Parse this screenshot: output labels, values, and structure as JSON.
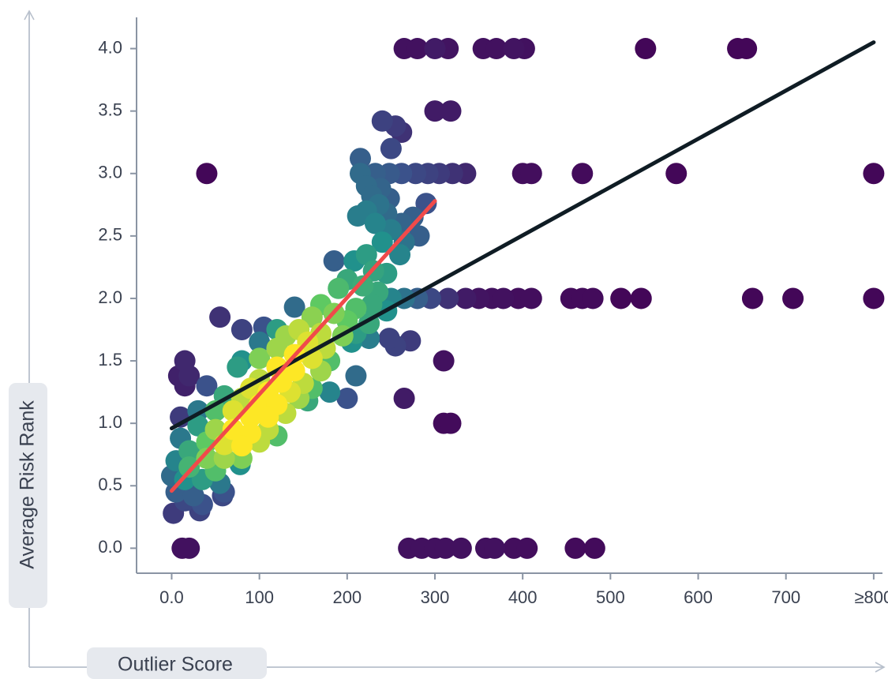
{
  "chart_data": {
    "type": "scatter",
    "title": "",
    "xlabel": "Outlier Score",
    "ylabel": "Average Risk Rank",
    "xlim": [
      -40,
      810
    ],
    "ylim": [
      -0.2,
      4.25
    ],
    "x_ticks": [
      {
        "value": 0,
        "label": "0.0"
      },
      {
        "value": 100,
        "label": "100"
      },
      {
        "value": 200,
        "label": "200"
      },
      {
        "value": 300,
        "label": "300"
      },
      {
        "value": 400,
        "label": "400"
      },
      {
        "value": 500,
        "label": "500"
      },
      {
        "value": 600,
        "label": "600"
      },
      {
        "value": 700,
        "label": "700"
      },
      {
        "value": 800,
        "label": "≥800"
      }
    ],
    "y_ticks": [
      {
        "value": 0,
        "label": "0.0"
      },
      {
        "value": 0.5,
        "label": "0.5"
      },
      {
        "value": 1,
        "label": "1.0"
      },
      {
        "value": 1.5,
        "label": "1.5"
      },
      {
        "value": 2,
        "label": "2.0"
      },
      {
        "value": 2.5,
        "label": "2.5"
      },
      {
        "value": 3,
        "label": "3.0"
      },
      {
        "value": 3.5,
        "label": "3.5"
      },
      {
        "value": 4,
        "label": "4.0"
      }
    ],
    "grid": false,
    "legend": "none",
    "color_map": [
      "#440154",
      "#3b528b",
      "#21918c",
      "#5ec962",
      "#fde725"
    ],
    "points": [
      {
        "x": 265,
        "y": 4.0,
        "d": 0.05
      },
      {
        "x": 280,
        "y": 4.0,
        "d": 0.05
      },
      {
        "x": 300,
        "y": 4.0,
        "d": 0.08
      },
      {
        "x": 315,
        "y": 4.0,
        "d": 0.06
      },
      {
        "x": 355,
        "y": 4.0,
        "d": 0.05
      },
      {
        "x": 370,
        "y": 4.0,
        "d": 0.05
      },
      {
        "x": 390,
        "y": 4.0,
        "d": 0.06
      },
      {
        "x": 402,
        "y": 4.0,
        "d": 0.05
      },
      {
        "x": 540,
        "y": 4.0,
        "d": 0.02
      },
      {
        "x": 645,
        "y": 4.0,
        "d": 0.02
      },
      {
        "x": 655,
        "y": 4.0,
        "d": 0.02
      },
      {
        "x": 300,
        "y": 3.5,
        "d": 0.08
      },
      {
        "x": 318,
        "y": 3.5,
        "d": 0.08
      },
      {
        "x": 240,
        "y": 3.42,
        "d": 0.2
      },
      {
        "x": 255,
        "y": 3.38,
        "d": 0.18
      },
      {
        "x": 262,
        "y": 3.33,
        "d": 0.15
      },
      {
        "x": 250,
        "y": 3.2,
        "d": 0.22
      },
      {
        "x": 215,
        "y": 3.12,
        "d": 0.3
      },
      {
        "x": 40,
        "y": 3.0,
        "d": 0.02
      },
      {
        "x": 215,
        "y": 3.0,
        "d": 0.35
      },
      {
        "x": 232,
        "y": 3.0,
        "d": 0.3
      },
      {
        "x": 248,
        "y": 3.0,
        "d": 0.28
      },
      {
        "x": 262,
        "y": 3.0,
        "d": 0.25
      },
      {
        "x": 278,
        "y": 3.0,
        "d": 0.22
      },
      {
        "x": 292,
        "y": 3.0,
        "d": 0.2
      },
      {
        "x": 305,
        "y": 3.0,
        "d": 0.18
      },
      {
        "x": 320,
        "y": 3.0,
        "d": 0.15
      },
      {
        "x": 335,
        "y": 3.0,
        "d": 0.12
      },
      {
        "x": 400,
        "y": 3.0,
        "d": 0.04
      },
      {
        "x": 410,
        "y": 3.0,
        "d": 0.04
      },
      {
        "x": 468,
        "y": 3.0,
        "d": 0.03
      },
      {
        "x": 575,
        "y": 3.0,
        "d": 0.02
      },
      {
        "x": 800,
        "y": 3.0,
        "d": 0.02
      },
      {
        "x": 222,
        "y": 2.9,
        "d": 0.35
      },
      {
        "x": 238,
        "y": 2.88,
        "d": 0.32
      },
      {
        "x": 228,
        "y": 2.82,
        "d": 0.35
      },
      {
        "x": 248,
        "y": 2.8,
        "d": 0.3
      },
      {
        "x": 236,
        "y": 2.75,
        "d": 0.38
      },
      {
        "x": 290,
        "y": 2.76,
        "d": 0.25
      },
      {
        "x": 222,
        "y": 2.7,
        "d": 0.42
      },
      {
        "x": 245,
        "y": 2.68,
        "d": 0.35
      },
      {
        "x": 212,
        "y": 2.66,
        "d": 0.42
      },
      {
        "x": 262,
        "y": 2.6,
        "d": 0.32
      },
      {
        "x": 275,
        "y": 2.65,
        "d": 0.3
      },
      {
        "x": 232,
        "y": 2.6,
        "d": 0.45
      },
      {
        "x": 250,
        "y": 2.55,
        "d": 0.42
      },
      {
        "x": 282,
        "y": 2.5,
        "d": 0.3
      },
      {
        "x": 265,
        "y": 2.45,
        "d": 0.38
      },
      {
        "x": 240,
        "y": 2.45,
        "d": 0.5
      },
      {
        "x": 260,
        "y": 2.35,
        "d": 0.45
      },
      {
        "x": 222,
        "y": 2.35,
        "d": 0.55
      },
      {
        "x": 185,
        "y": 2.3,
        "d": 0.3
      },
      {
        "x": 208,
        "y": 2.3,
        "d": 0.5
      },
      {
        "x": 245,
        "y": 2.2,
        "d": 0.55
      },
      {
        "x": 230,
        "y": 2.22,
        "d": 0.58
      },
      {
        "x": 200,
        "y": 2.15,
        "d": 0.6
      },
      {
        "x": 218,
        "y": 2.1,
        "d": 0.62
      },
      {
        "x": 235,
        "y": 2.05,
        "d": 0.6
      },
      {
        "x": 190,
        "y": 2.08,
        "d": 0.68
      },
      {
        "x": 250,
        "y": 2.0,
        "d": 0.45
      },
      {
        "x": 265,
        "y": 2.0,
        "d": 0.38
      },
      {
        "x": 280,
        "y": 2.0,
        "d": 0.3
      },
      {
        "x": 295,
        "y": 2.0,
        "d": 0.22
      },
      {
        "x": 315,
        "y": 2.0,
        "d": 0.15
      },
      {
        "x": 335,
        "y": 2.0,
        "d": 0.08
      },
      {
        "x": 350,
        "y": 2.0,
        "d": 0.06
      },
      {
        "x": 365,
        "y": 2.0,
        "d": 0.05
      },
      {
        "x": 378,
        "y": 2.0,
        "d": 0.05
      },
      {
        "x": 395,
        "y": 2.0,
        "d": 0.04
      },
      {
        "x": 410,
        "y": 2.0,
        "d": 0.04
      },
      {
        "x": 455,
        "y": 2.0,
        "d": 0.03
      },
      {
        "x": 468,
        "y": 2.0,
        "d": 0.03
      },
      {
        "x": 480,
        "y": 2.0,
        "d": 0.03
      },
      {
        "x": 512,
        "y": 2.0,
        "d": 0.02
      },
      {
        "x": 535,
        "y": 2.0,
        "d": 0.02
      },
      {
        "x": 662,
        "y": 2.0,
        "d": 0.02
      },
      {
        "x": 708,
        "y": 2.0,
        "d": 0.02
      },
      {
        "x": 800,
        "y": 2.0,
        "d": 0.02
      },
      {
        "x": 228,
        "y": 1.95,
        "d": 0.6
      },
      {
        "x": 170,
        "y": 1.95,
        "d": 0.75
      },
      {
        "x": 210,
        "y": 1.92,
        "d": 0.7
      },
      {
        "x": 140,
        "y": 1.93,
        "d": 0.35
      },
      {
        "x": 245,
        "y": 1.9,
        "d": 0.5
      },
      {
        "x": 185,
        "y": 1.88,
        "d": 0.8
      },
      {
        "x": 160,
        "y": 1.85,
        "d": 0.82
      },
      {
        "x": 200,
        "y": 1.82,
        "d": 0.75
      },
      {
        "x": 55,
        "y": 1.85,
        "d": 0.15
      },
      {
        "x": 225,
        "y": 1.8,
        "d": 0.6
      },
      {
        "x": 80,
        "y": 1.75,
        "d": 0.2
      },
      {
        "x": 105,
        "y": 1.77,
        "d": 0.25
      },
      {
        "x": 120,
        "y": 1.75,
        "d": 0.55
      },
      {
        "x": 145,
        "y": 1.75,
        "d": 0.9
      },
      {
        "x": 170,
        "y": 1.72,
        "d": 0.9
      },
      {
        "x": 210,
        "y": 1.72,
        "d": 0.55
      },
      {
        "x": 130,
        "y": 1.7,
        "d": 0.85
      },
      {
        "x": 195,
        "y": 1.7,
        "d": 0.8
      },
      {
        "x": 100,
        "y": 1.65,
        "d": 0.4
      },
      {
        "x": 155,
        "y": 1.65,
        "d": 0.95
      },
      {
        "x": 205,
        "y": 1.65,
        "d": 0.5
      },
      {
        "x": 225,
        "y": 1.68,
        "d": 0.42
      },
      {
        "x": 255,
        "y": 1.62,
        "d": 0.2
      },
      {
        "x": 272,
        "y": 1.66,
        "d": 0.18
      },
      {
        "x": 120,
        "y": 1.6,
        "d": 0.85
      },
      {
        "x": 175,
        "y": 1.6,
        "d": 0.9
      },
      {
        "x": 248,
        "y": 1.68,
        "d": 0.2
      },
      {
        "x": 140,
        "y": 1.55,
        "d": 1.0
      },
      {
        "x": 80,
        "y": 1.5,
        "d": 0.5
      },
      {
        "x": 100,
        "y": 1.52,
        "d": 0.8
      },
      {
        "x": 160,
        "y": 1.52,
        "d": 0.95
      },
      {
        "x": 180,
        "y": 1.5,
        "d": 0.7
      },
      {
        "x": 310,
        "y": 1.5,
        "d": 0.05
      },
      {
        "x": 15,
        "y": 1.5,
        "d": 0.12
      },
      {
        "x": 120,
        "y": 1.45,
        "d": 1.0
      },
      {
        "x": 75,
        "y": 1.45,
        "d": 0.55
      },
      {
        "x": 140,
        "y": 1.42,
        "d": 1.0
      },
      {
        "x": 170,
        "y": 1.42,
        "d": 0.85
      },
      {
        "x": 8,
        "y": 1.38,
        "d": 0.1
      },
      {
        "x": 20,
        "y": 1.38,
        "d": 0.12
      },
      {
        "x": 100,
        "y": 1.35,
        "d": 0.9
      },
      {
        "x": 125,
        "y": 1.33,
        "d": 1.0
      },
      {
        "x": 150,
        "y": 1.32,
        "d": 0.9
      },
      {
        "x": 210,
        "y": 1.38,
        "d": 0.35
      },
      {
        "x": 15,
        "y": 1.3,
        "d": 0.1
      },
      {
        "x": 40,
        "y": 1.3,
        "d": 0.25
      },
      {
        "x": 90,
        "y": 1.28,
        "d": 0.95
      },
      {
        "x": 110,
        "y": 1.25,
        "d": 1.0
      },
      {
        "x": 135,
        "y": 1.25,
        "d": 0.95
      },
      {
        "x": 160,
        "y": 1.28,
        "d": 0.7
      },
      {
        "x": 60,
        "y": 1.22,
        "d": 0.6
      },
      {
        "x": 80,
        "y": 1.2,
        "d": 0.9
      },
      {
        "x": 100,
        "y": 1.15,
        "d": 1.0
      },
      {
        "x": 120,
        "y": 1.15,
        "d": 1.0
      },
      {
        "x": 145,
        "y": 1.2,
        "d": 0.85
      },
      {
        "x": 180,
        "y": 1.25,
        "d": 0.45
      },
      {
        "x": 200,
        "y": 1.2,
        "d": 0.25
      },
      {
        "x": 265,
        "y": 1.2,
        "d": 0.08
      },
      {
        "x": 30,
        "y": 1.1,
        "d": 0.4
      },
      {
        "x": 50,
        "y": 1.1,
        "d": 0.7
      },
      {
        "x": 70,
        "y": 1.1,
        "d": 0.95
      },
      {
        "x": 90,
        "y": 1.05,
        "d": 1.0
      },
      {
        "x": 110,
        "y": 1.05,
        "d": 1.0
      },
      {
        "x": 130,
        "y": 1.08,
        "d": 0.9
      },
      {
        "x": 155,
        "y": 1.18,
        "d": 0.6
      },
      {
        "x": 10,
        "y": 1.05,
        "d": 0.18
      },
      {
        "x": 30,
        "y": 0.98,
        "d": 0.55
      },
      {
        "x": 50,
        "y": 0.95,
        "d": 0.85
      },
      {
        "x": 70,
        "y": 0.95,
        "d": 1.0
      },
      {
        "x": 90,
        "y": 0.92,
        "d": 1.0
      },
      {
        "x": 110,
        "y": 0.95,
        "d": 0.9
      },
      {
        "x": 310,
        "y": 1.0,
        "d": 0.03
      },
      {
        "x": 318,
        "y": 1.0,
        "d": 0.03
      },
      {
        "x": 10,
        "y": 0.88,
        "d": 0.4
      },
      {
        "x": 40,
        "y": 0.85,
        "d": 0.75
      },
      {
        "x": 60,
        "y": 0.83,
        "d": 0.95
      },
      {
        "x": 80,
        "y": 0.82,
        "d": 1.0
      },
      {
        "x": 100,
        "y": 0.85,
        "d": 0.9
      },
      {
        "x": 120,
        "y": 0.9,
        "d": 0.7
      },
      {
        "x": 20,
        "y": 0.78,
        "d": 0.6
      },
      {
        "x": 40,
        "y": 0.72,
        "d": 0.8
      },
      {
        "x": 60,
        "y": 0.72,
        "d": 0.85
      },
      {
        "x": 80,
        "y": 0.72,
        "d": 0.8
      },
      {
        "x": 5,
        "y": 0.7,
        "d": 0.45
      },
      {
        "x": 20,
        "y": 0.65,
        "d": 0.65
      },
      {
        "x": 50,
        "y": 0.62,
        "d": 0.7
      },
      {
        "x": 78,
        "y": 0.67,
        "d": 0.5
      },
      {
        "x": 0,
        "y": 0.58,
        "d": 0.35
      },
      {
        "x": 15,
        "y": 0.55,
        "d": 0.5
      },
      {
        "x": 35,
        "y": 0.55,
        "d": 0.55
      },
      {
        "x": 55,
        "y": 0.52,
        "d": 0.4
      },
      {
        "x": 5,
        "y": 0.45,
        "d": 0.3
      },
      {
        "x": 25,
        "y": 0.42,
        "d": 0.3
      },
      {
        "x": 60,
        "y": 0.45,
        "d": 0.25
      },
      {
        "x": 15,
        "y": 0.38,
        "d": 0.22
      },
      {
        "x": 35,
        "y": 0.35,
        "d": 0.25
      },
      {
        "x": 58,
        "y": 0.42,
        "d": 0.22
      },
      {
        "x": 2,
        "y": 0.28,
        "d": 0.18
      },
      {
        "x": 32,
        "y": 0.3,
        "d": 0.2
      },
      {
        "x": 12,
        "y": 0.0,
        "d": 0.05
      },
      {
        "x": 20,
        "y": 0.0,
        "d": 0.05
      },
      {
        "x": 270,
        "y": 0.0,
        "d": 0.05
      },
      {
        "x": 285,
        "y": 0.0,
        "d": 0.05
      },
      {
        "x": 300,
        "y": 0.0,
        "d": 0.05
      },
      {
        "x": 312,
        "y": 0.0,
        "d": 0.05
      },
      {
        "x": 330,
        "y": 0.0,
        "d": 0.05
      },
      {
        "x": 358,
        "y": 0.0,
        "d": 0.05
      },
      {
        "x": 368,
        "y": 0.0,
        "d": 0.05
      },
      {
        "x": 390,
        "y": 0.0,
        "d": 0.04
      },
      {
        "x": 405,
        "y": 0.0,
        "d": 0.04
      },
      {
        "x": 460,
        "y": 0.0,
        "d": 0.03
      },
      {
        "x": 482,
        "y": 0.0,
        "d": 0.03
      }
    ],
    "trend_lines": [
      {
        "color": "#0f1c24",
        "points": [
          [
            0,
            0.96
          ],
          [
            800,
            4.05
          ]
        ]
      },
      {
        "color": "#f04a4a",
        "points": [
          [
            0,
            0.46
          ],
          [
            300,
            2.78
          ]
        ]
      }
    ]
  }
}
